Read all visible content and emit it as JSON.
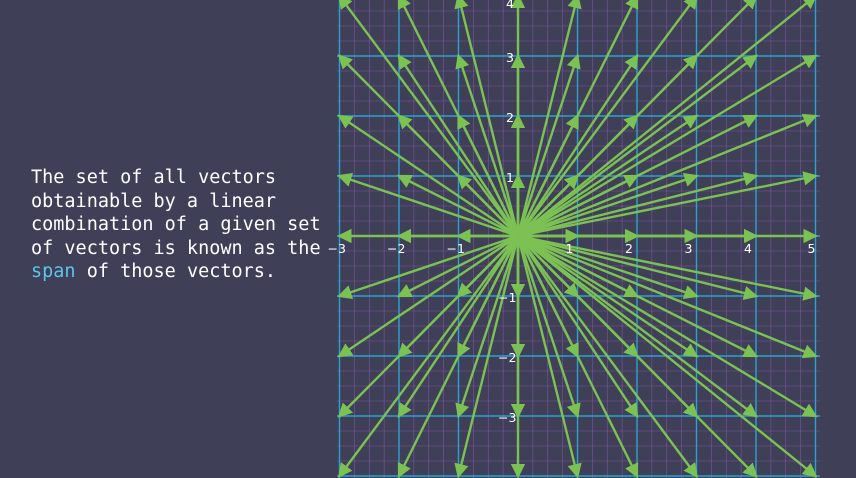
{
  "caption": {
    "before": "The set of all vectors obtainable by a linear combination of a given set of vectors is known as the",
    "highlight": "span",
    "after": "of those vectors."
  },
  "colors": {
    "background": "#3f3f58",
    "grid_major": "#2aa4cf",
    "grid_minor": "#8a5bb0",
    "vector": "#7cc153",
    "text": "#ffffff",
    "highlight": "#5cc6e8"
  },
  "plane": {
    "x_ticks": [
      "−3",
      "−2",
      "−1",
      "1",
      "2",
      "3",
      "4",
      "5"
    ],
    "y_ticks": [
      "4",
      "3",
      "2",
      "1",
      "−1",
      "−2",
      "−3"
    ],
    "x_range": [
      -3.1,
      5.05
    ],
    "y_range": [
      -3.9,
      4.05
    ]
  },
  "chart_data": {
    "type": "vector field",
    "description_source": "vectors from origin to every integer lattice point in view",
    "x_range": [
      -3,
      5
    ],
    "y_range": [
      -4,
      4
    ],
    "origin": [
      0,
      0
    ]
  }
}
